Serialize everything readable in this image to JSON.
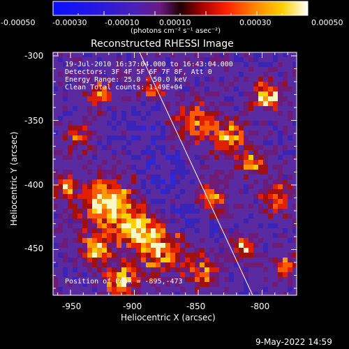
{
  "colorbar": {
    "ticks": [
      "-0.00050",
      "-0.00030",
      "-0.00010",
      "0.00010",
      "0.00030",
      "0.00050"
    ],
    "unit_label": "(photons cm⁻² s⁻¹ asec⁻²)"
  },
  "title": "Reconstructed RHESSI Image",
  "overlay": {
    "line1": "19-Jul-2010 16:37:04.000 to 16:43:04.000",
    "line2": "Detectors: 3F 4F 5F 6F 7F 8F, Att 0",
    "line3": "Energy Range: 25.0 - 50.0 keV",
    "line4": "Clean     Total counts: 1.49E+04",
    "peak": "Position of Peak = -895,-473"
  },
  "x_axis": {
    "label": "Heliocentric X (arcsec)",
    "ticks": [
      "-950",
      "-900",
      "-850",
      "-800"
    ]
  },
  "y_axis": {
    "label": "Heliocentric Y (arcsec)",
    "ticks": [
      "-300",
      "-350",
      "-400",
      "-450"
    ]
  },
  "footer": {
    "date": "9-May-2022 14:59"
  },
  "colors": {
    "background": "#000000",
    "neutral_purple": "#5a2aa0",
    "negative_blue": "#2030e0",
    "hot_yellow": "#ffd000",
    "hot_white": "#fffbe0"
  }
}
